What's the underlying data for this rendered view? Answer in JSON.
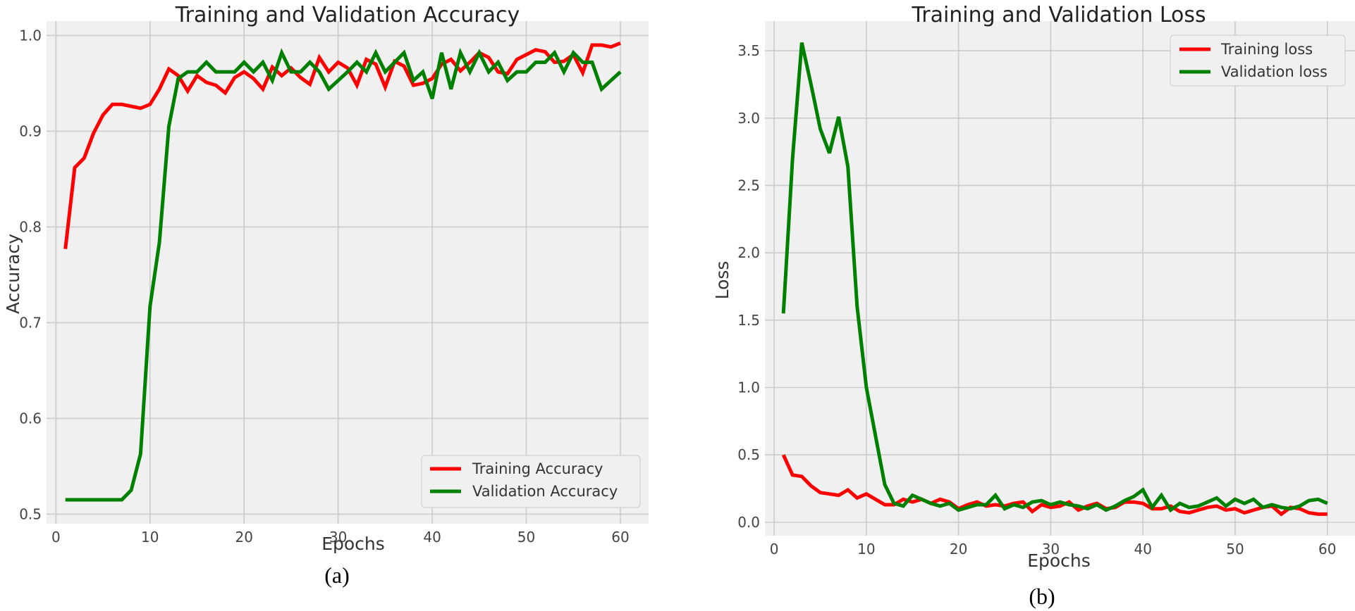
{
  "chart_data": [
    {
      "type": "line",
      "title": "Training and Validation Accuracy",
      "xlabel": "Epochs",
      "ylabel": "Accuracy",
      "xlim": [
        -1,
        63
      ],
      "ylim": [
        0.49,
        1.015
      ],
      "xticks": [
        0,
        10,
        20,
        30,
        40,
        50,
        60
      ],
      "yticks": [
        0.5,
        0.6,
        0.7,
        0.8,
        0.9,
        1.0
      ],
      "ytick_labels": [
        "0.5",
        "0.6",
        "0.7",
        "0.8",
        "0.9",
        "1.0"
      ],
      "grid": true,
      "legend_position": "lower-right",
      "caption": "(a)",
      "x": [
        1,
        2,
        3,
        4,
        5,
        6,
        7,
        8,
        9,
        10,
        11,
        12,
        13,
        14,
        15,
        16,
        17,
        18,
        19,
        20,
        21,
        22,
        23,
        24,
        25,
        26,
        27,
        28,
        29,
        30,
        31,
        32,
        33,
        34,
        35,
        36,
        37,
        38,
        39,
        40,
        41,
        42,
        43,
        44,
        45,
        46,
        47,
        48,
        49,
        50,
        51,
        52,
        53,
        54,
        55,
        56,
        57,
        58,
        59,
        60
      ],
      "series": [
        {
          "name": "Training Accuracy",
          "color": "#ff0000",
          "values": [
            0.777,
            0.862,
            0.872,
            0.898,
            0.917,
            0.928,
            0.928,
            0.926,
            0.924,
            0.928,
            0.944,
            0.965,
            0.958,
            0.942,
            0.958,
            0.951,
            0.948,
            0.94,
            0.956,
            0.962,
            0.955,
            0.944,
            0.967,
            0.958,
            0.966,
            0.956,
            0.949,
            0.977,
            0.962,
            0.972,
            0.966,
            0.948,
            0.975,
            0.97,
            0.946,
            0.973,
            0.968,
            0.948,
            0.95,
            0.955,
            0.97,
            0.975,
            0.963,
            0.972,
            0.982,
            0.977,
            0.962,
            0.96,
            0.975,
            0.98,
            0.985,
            0.983,
            0.972,
            0.973,
            0.98,
            0.961,
            0.99,
            0.99,
            0.988,
            0.992
          ]
        },
        {
          "name": "Validation Accuracy",
          "color": "#008000",
          "values": [
            0.515,
            0.515,
            0.515,
            0.515,
            0.515,
            0.515,
            0.515,
            0.525,
            0.563,
            0.717,
            0.784,
            0.905,
            0.955,
            0.962,
            0.962,
            0.972,
            0.962,
            0.962,
            0.962,
            0.972,
            0.962,
            0.972,
            0.953,
            0.982,
            0.962,
            0.962,
            0.972,
            0.962,
            0.944,
            0.953,
            0.962,
            0.972,
            0.962,
            0.982,
            0.962,
            0.972,
            0.982,
            0.953,
            0.962,
            0.934,
            0.982,
            0.944,
            0.982,
            0.962,
            0.982,
            0.962,
            0.972,
            0.953,
            0.962,
            0.962,
            0.972,
            0.972,
            0.982,
            0.962,
            0.982,
            0.972,
            0.972,
            0.944,
            0.953,
            0.962
          ]
        }
      ]
    },
    {
      "type": "line",
      "title": "Training and Validation Loss",
      "xlabel": "Epochs",
      "ylabel": "Loss",
      "xlim": [
        -1,
        63
      ],
      "ylim": [
        -0.1,
        3.72
      ],
      "xticks": [
        0,
        10,
        20,
        30,
        40,
        50,
        60
      ],
      "yticks": [
        0,
        0.5,
        1.0,
        1.5,
        2.0,
        2.5,
        3.0,
        3.5
      ],
      "ytick_labels": [
        "0.0",
        "0.5",
        "1.0",
        "1.5",
        "2.0",
        "2.5",
        "3.0",
        "3.5"
      ],
      "grid": true,
      "legend_position": "top-right",
      "caption": "(b)",
      "x": [
        1,
        2,
        3,
        4,
        5,
        6,
        7,
        8,
        9,
        10,
        11,
        12,
        13,
        14,
        15,
        16,
        17,
        18,
        19,
        20,
        21,
        22,
        23,
        24,
        25,
        26,
        27,
        28,
        29,
        30,
        31,
        32,
        33,
        34,
        35,
        36,
        37,
        38,
        39,
        40,
        41,
        42,
        43,
        44,
        45,
        46,
        47,
        48,
        49,
        50,
        51,
        52,
        53,
        54,
        55,
        56,
        57,
        58,
        59,
        60
      ],
      "series": [
        {
          "name": "Training loss",
          "color": "#ff0000",
          "values": [
            0.5,
            0.35,
            0.34,
            0.27,
            0.22,
            0.21,
            0.2,
            0.24,
            0.18,
            0.21,
            0.17,
            0.13,
            0.13,
            0.17,
            0.15,
            0.17,
            0.14,
            0.17,
            0.15,
            0.1,
            0.13,
            0.15,
            0.12,
            0.13,
            0.12,
            0.14,
            0.15,
            0.08,
            0.13,
            0.11,
            0.12,
            0.15,
            0.09,
            0.12,
            0.14,
            0.1,
            0.11,
            0.15,
            0.15,
            0.14,
            0.1,
            0.1,
            0.12,
            0.08,
            0.07,
            0.09,
            0.11,
            0.12,
            0.09,
            0.1,
            0.07,
            0.09,
            0.11,
            0.12,
            0.06,
            0.11,
            0.1,
            0.07,
            0.06,
            0.06
          ]
        },
        {
          "name": "Validation loss",
          "color": "#008000",
          "values": [
            1.55,
            2.7,
            3.56,
            3.25,
            2.92,
            2.74,
            3.01,
            2.64,
            1.6,
            1.0,
            0.64,
            0.28,
            0.14,
            0.12,
            0.2,
            0.17,
            0.14,
            0.12,
            0.14,
            0.09,
            0.11,
            0.13,
            0.13,
            0.2,
            0.1,
            0.13,
            0.11,
            0.15,
            0.16,
            0.13,
            0.15,
            0.13,
            0.12,
            0.1,
            0.13,
            0.09,
            0.12,
            0.16,
            0.19,
            0.24,
            0.11,
            0.2,
            0.09,
            0.14,
            0.11,
            0.12,
            0.15,
            0.18,
            0.12,
            0.17,
            0.14,
            0.17,
            0.11,
            0.13,
            0.11,
            0.1,
            0.12,
            0.16,
            0.17,
            0.14
          ]
        }
      ]
    }
  ]
}
